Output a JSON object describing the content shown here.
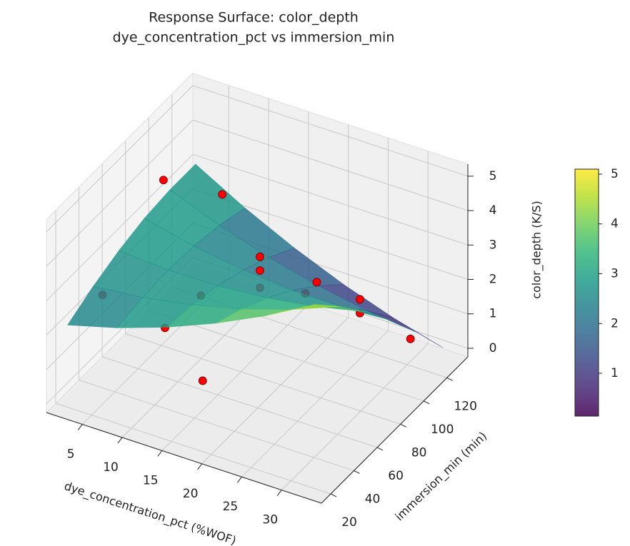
{
  "chart_data": {
    "type": "surface3d",
    "title": [
      "Response Surface: color_depth",
      "dye_concentration_pct vs immersion_min"
    ],
    "x_label": "dye_concentration_pct (%WOF)",
    "y_label": "immersion_min (min)",
    "z_label": "color_depth (K/S)",
    "xlim": [
      0.5,
      35
    ],
    "ylim": [
      12,
      138
    ],
    "zlim": [
      -0.25,
      5.35
    ],
    "xticks": [
      5,
      10,
      15,
      20,
      25,
      30
    ],
    "yticks": [
      20,
      40,
      60,
      80,
      100,
      120
    ],
    "zticks": [
      0,
      1,
      2,
      3,
      4,
      5
    ],
    "grid": true,
    "surface": {
      "colormap": "viridis",
      "x": [
        2,
        8.2,
        14.4,
        20.6,
        26.8,
        33
      ],
      "y": [
        20,
        42,
        64,
        86,
        108,
        130
      ],
      "z": [
        [
          2.14,
          2.53,
          3.02,
          3.61,
          4.3,
          5.1
        ],
        [
          2.52,
          2.67,
          2.93,
          3.28,
          3.74,
          4.3
        ],
        [
          2.81,
          2.73,
          2.74,
          2.86,
          3.08,
          3.41
        ],
        [
          3.01,
          2.68,
          2.46,
          2.34,
          2.33,
          2.41
        ],
        [
          3.1,
          2.54,
          2.08,
          1.73,
          1.47,
          1.32
        ],
        [
          3.1,
          2.3,
          1.61,
          1.02,
          0.53,
          0.14
        ]
      ]
    },
    "points": {
      "color": "#ff0000",
      "x": [
        6,
        11,
        15,
        25.4,
        25.4,
        31.3,
        2,
        10.7,
        9,
        16.5,
        16.5,
        16.5,
        21,
        20
      ],
      "y": [
        75,
        42,
        47,
        111,
        111,
        114,
        50,
        75,
        105,
        86,
        86,
        86,
        104,
        101
      ],
      "z": [
        4.8,
        2.0,
        0.6,
        1.6,
        1.2,
        0.8,
        2.0,
        1.8,
        3.6,
        3.0,
        2.6,
        2.1,
        2.0,
        1.7
      ]
    },
    "colorbar": {
      "clim": [
        0.14,
        5.1
      ],
      "ticks": [
        1,
        2,
        3,
        4,
        5
      ]
    }
  }
}
